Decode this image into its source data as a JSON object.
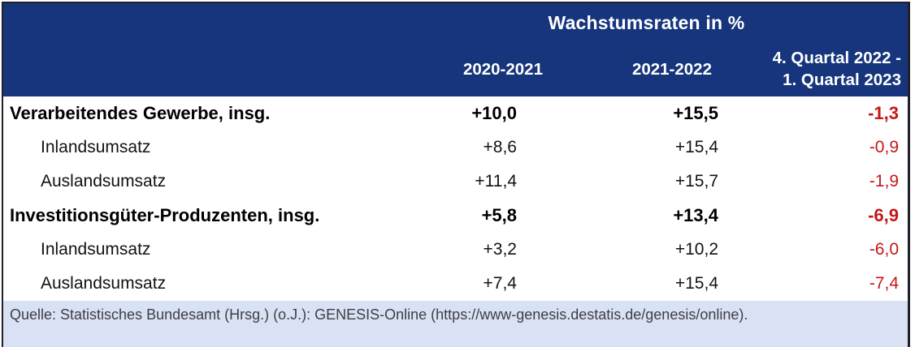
{
  "table": {
    "title": "Wachstumsraten in %",
    "columns": [
      "2020-2021",
      "2021-2022",
      "4. Quartal 2022 -\n1. Quartal 2023"
    ],
    "rows": [
      {
        "label": "Verarbeitendes Gewerbe, insg.",
        "values": [
          "+10,0",
          "+15,5",
          "-1,3"
        ]
      },
      {
        "label": "Inlandsumsatz",
        "values": [
          "+8,6",
          "+15,4",
          "-0,9"
        ]
      },
      {
        "label": "Auslandsumsatz",
        "values": [
          "+11,4",
          "+15,7",
          "-1,9"
        ]
      },
      {
        "label": "Investitionsgüter-Produzenten, insg.",
        "values": [
          "+5,8",
          "+13,4",
          "-6,9"
        ]
      },
      {
        "label": "Inlandsumsatz",
        "values": [
          "+3,2",
          "+10,2",
          "-6,0"
        ]
      },
      {
        "label": "Auslandsumsatz",
        "values": [
          "+7,4",
          "+15,4",
          "-7,4"
        ]
      }
    ],
    "source": "Quelle: Statistisches Bundesamt (Hrsg.) (o.J.): GENESIS-Online (https://www-genesis.destatis.de/genesis/online)."
  },
  "colors": {
    "header_bg": "#17357c",
    "footer_bg": "#d9e2f4",
    "negative_color": "#c51718",
    "border_color": "#20202a"
  },
  "chart_data": {
    "type": "table",
    "title": "Wachstumsraten in %",
    "columns": [
      "2020-2021",
      "2021-2022",
      "4. Quartal 2022 - 1. Quartal 2023"
    ],
    "rows": [
      {
        "label": "Verarbeitendes Gewerbe, insg.",
        "values": [
          10.0,
          15.5,
          -1.3
        ]
      },
      {
        "label": "Inlandsumsatz",
        "values": [
          8.6,
          15.4,
          -0.9
        ]
      },
      {
        "label": "Auslandsumsatz",
        "values": [
          11.4,
          15.7,
          -1.9
        ]
      },
      {
        "label": "Investitionsgüter-Produzenten, insg.",
        "values": [
          5.8,
          13.4,
          -6.9
        ]
      },
      {
        "label": "Inlandsumsatz",
        "values": [
          3.2,
          10.2,
          -6.0
        ]
      },
      {
        "label": "Auslandsumsatz",
        "values": [
          7.4,
          15.4,
          -7.4
        ]
      }
    ],
    "source": "Quelle: Statistisches Bundesamt (Hrsg.) (o.J.): GENESIS-Online (https://www-genesis.destatis.de/genesis/online)."
  }
}
